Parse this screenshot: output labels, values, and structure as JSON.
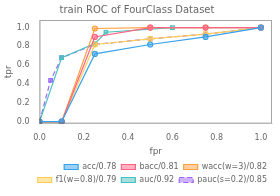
{
  "chart_data": {
    "type": "line",
    "title": "train ROC of FourClass Dataset",
    "xlabel": "fpr",
    "ylabel": "tpr",
    "series": [
      {
        "name": "acc/0.78",
        "marker": "circle",
        "line_style": "solid",
        "x": [
          0.0,
          0.1,
          0.25,
          0.5,
          0.75,
          1.0
        ],
        "values": [
          0.0,
          0.0,
          0.72,
          0.82,
          0.9,
          1.0
        ]
      },
      {
        "name": "bacc/0.81",
        "marker": "circle",
        "line_style": "solid",
        "x": [
          0.0,
          0.1,
          0.25,
          0.5,
          0.75,
          1.0
        ],
        "values": [
          0.0,
          0.0,
          0.9,
          1.0,
          1.0,
          1.0
        ]
      },
      {
        "name": "wacc(w=3)/0.82",
        "marker": "circle",
        "line_style": "solid",
        "x": [
          0.0,
          0.1,
          0.25,
          0.5,
          0.75,
          1.0
        ],
        "values": [
          0.0,
          0.0,
          0.99,
          1.0,
          1.0,
          1.0
        ]
      },
      {
        "name": "f1(w=0.8)/0.79",
        "marker": "circle",
        "line_style": "solid",
        "x": [
          0.0,
          0.1,
          0.25,
          0.5,
          0.75,
          1.0
        ],
        "values": [
          0.0,
          0.0,
          0.82,
          0.88,
          0.93,
          1.0
        ]
      },
      {
        "name": "auc/0.92",
        "marker": "square",
        "line_style": "solid",
        "x": [
          0.0,
          0.1,
          0.25,
          0.3,
          0.6,
          1.0
        ],
        "values": [
          0.0,
          0.68,
          0.83,
          0.95,
          1.0,
          1.0
        ]
      },
      {
        "name": "pauc(s=0.2)/0.85",
        "marker": "square",
        "line_style": "dashed",
        "x": [
          0.0,
          0.05,
          0.1,
          0.25,
          0.5,
          0.75,
          1.0
        ],
        "values": [
          0.0,
          0.44,
          0.68,
          0.82,
          0.88,
          0.93,
          1.0
        ]
      }
    ],
    "xlim": [
      0.0,
      1.05
    ],
    "ylim": [
      -0.02,
      1.08
    ],
    "xticks": [
      {
        "value": 0.0,
        "label": "0.0"
      },
      0.2,
      0.4,
      0.6,
      0.8,
      {
        "value": 1.0,
        "label": "1.0"
      }
    ],
    "yticks": [
      {
        "value": 0.0,
        "label": "0.0"
      },
      0.2,
      0.4,
      0.6,
      0.8,
      {
        "value": 1.0,
        "label": "1.0"
      }
    ],
    "grid": false,
    "legend": "lower right"
  }
}
